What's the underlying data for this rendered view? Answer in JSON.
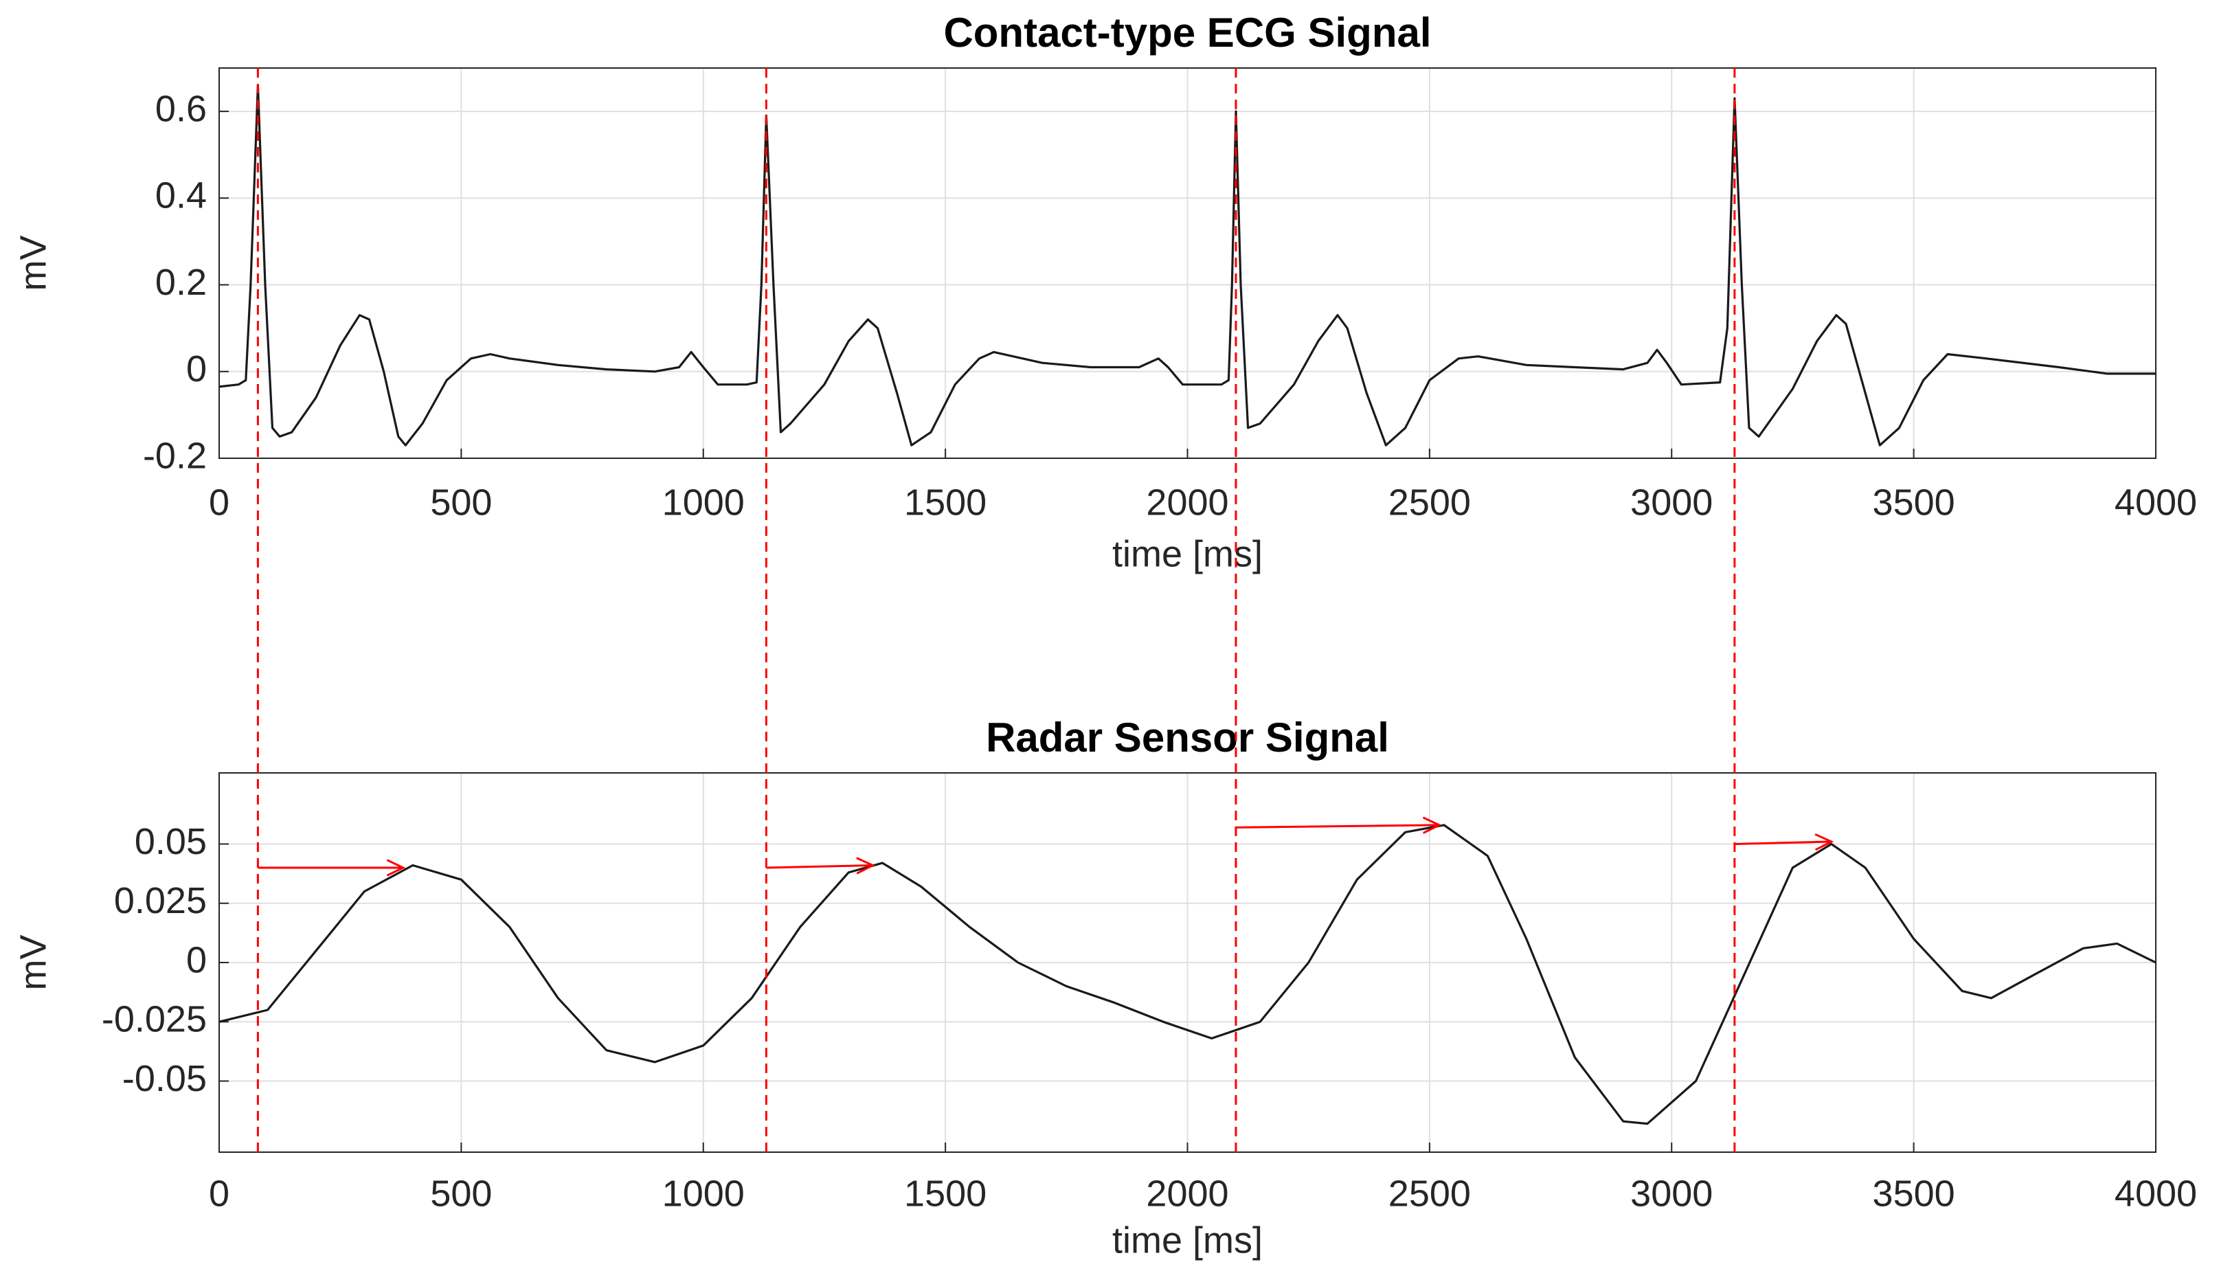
{
  "chart_data": [
    {
      "type": "line",
      "title": "Contact-type ECG Signal",
      "x_label": "time [ms]",
      "y_label": "mV",
      "color": "#1a1a1a",
      "x": [
        0,
        40,
        55,
        65,
        80,
        95,
        110,
        125,
        150,
        200,
        250,
        290,
        310,
        340,
        370,
        385,
        420,
        470,
        520,
        560,
        600,
        700,
        800,
        900,
        950,
        975,
        1000,
        1030,
        1090,
        1110,
        1120,
        1130,
        1145,
        1160,
        1180,
        1250,
        1300,
        1340,
        1360,
        1400,
        1430,
        1470,
        1520,
        1570,
        1600,
        1700,
        1800,
        1900,
        1940,
        1960,
        1990,
        2070,
        2085,
        2092,
        2100,
        2110,
        2125,
        2150,
        2220,
        2270,
        2310,
        2330,
        2370,
        2410,
        2450,
        2500,
        2560,
        2600,
        2700,
        2800,
        2900,
        2950,
        2970,
        2990,
        3020,
        3100,
        3115,
        3130,
        3145,
        3160,
        3180,
        3250,
        3300,
        3340,
        3360,
        3400,
        3430,
        3470,
        3520,
        3570,
        3650,
        3800,
        3900,
        4000
      ],
      "values": [
        -0.035,
        -0.03,
        -0.02,
        0.2,
        0.66,
        0.2,
        -0.13,
        -0.15,
        -0.14,
        -0.06,
        0.06,
        0.13,
        0.12,
        0.0,
        -0.15,
        -0.17,
        -0.12,
        -0.02,
        0.03,
        0.04,
        0.03,
        0.015,
        0.005,
        0.0,
        0.01,
        0.045,
        0.01,
        -0.03,
        -0.03,
        -0.025,
        0.2,
        0.59,
        0.2,
        -0.14,
        -0.12,
        -0.03,
        0.07,
        0.12,
        0.1,
        -0.05,
        -0.17,
        -0.14,
        -0.03,
        0.03,
        0.045,
        0.02,
        0.01,
        0.01,
        0.03,
        0.01,
        -0.03,
        -0.03,
        -0.02,
        0.2,
        0.6,
        0.2,
        -0.13,
        -0.12,
        -0.03,
        0.07,
        0.13,
        0.1,
        -0.05,
        -0.17,
        -0.13,
        -0.02,
        0.03,
        0.035,
        0.015,
        0.01,
        0.005,
        0.02,
        0.05,
        0.02,
        -0.03,
        -0.025,
        0.1,
        0.63,
        0.2,
        -0.13,
        -0.15,
        -0.04,
        0.07,
        0.13,
        0.11,
        -0.05,
        -0.17,
        -0.13,
        -0.02,
        0.04,
        0.03,
        0.01,
        -0.005,
        -0.005
      ],
      "xlim": [
        0,
        4000
      ],
      "xticks": [
        0,
        500,
        1000,
        1500,
        2000,
        2500,
        3000,
        3500,
        4000
      ],
      "ylim": [
        -0.2,
        0.7
      ],
      "yticks": [
        -0.2,
        0,
        0.2,
        0.4,
        0.6
      ],
      "grid": true,
      "vlines": [
        80,
        1130,
        2100,
        3130
      ],
      "vline_color": "#ff0000"
    },
    {
      "type": "line",
      "title": "Radar Sensor Signal",
      "x_label": "time [ms]",
      "y_label": "mV",
      "color": "#1a1a1a",
      "x": [
        0,
        100,
        200,
        300,
        400,
        500,
        600,
        700,
        800,
        900,
        1000,
        1100,
        1200,
        1300,
        1370,
        1450,
        1550,
        1650,
        1750,
        1850,
        1950,
        2050,
        2150,
        2250,
        2350,
        2450,
        2530,
        2620,
        2700,
        2800,
        2900,
        2950,
        3050,
        3150,
        3250,
        3330,
        3400,
        3500,
        3600,
        3660,
        3750,
        3850,
        3920,
        4000
      ],
      "values": [
        -0.025,
        -0.02,
        0.005,
        0.03,
        0.041,
        0.035,
        0.015,
        -0.015,
        -0.037,
        -0.042,
        -0.035,
        -0.015,
        0.015,
        0.038,
        0.042,
        0.032,
        0.015,
        0.0,
        -0.01,
        -0.017,
        -0.025,
        -0.032,
        -0.025,
        0.0,
        0.035,
        0.055,
        0.058,
        0.045,
        0.01,
        -0.04,
        -0.067,
        -0.068,
        -0.05,
        -0.005,
        0.04,
        0.05,
        0.04,
        0.01,
        -0.012,
        -0.015,
        -0.005,
        0.006,
        0.008,
        0.0
      ],
      "xlim": [
        0,
        4000
      ],
      "xticks": [
        0,
        500,
        1000,
        1500,
        2000,
        2500,
        3000,
        3500,
        4000
      ],
      "ylim": [
        -0.08,
        0.08
      ],
      "yticks": [
        -0.05,
        -0.025,
        0,
        0.025,
        0.05
      ],
      "grid": true,
      "arrows": [
        {
          "x": [
            80,
            380
          ],
          "y": [
            0.04,
            0.04
          ]
        },
        {
          "x": [
            1130,
            1350
          ],
          "y": [
            0.04,
            0.041
          ]
        },
        {
          "x": [
            2100,
            2520
          ],
          "y": [
            0.057,
            0.058
          ]
        },
        {
          "x": [
            3130,
            3330
          ],
          "y": [
            0.05,
            0.051
          ]
        }
      ],
      "arrow_color": "#ff0000"
    }
  ]
}
